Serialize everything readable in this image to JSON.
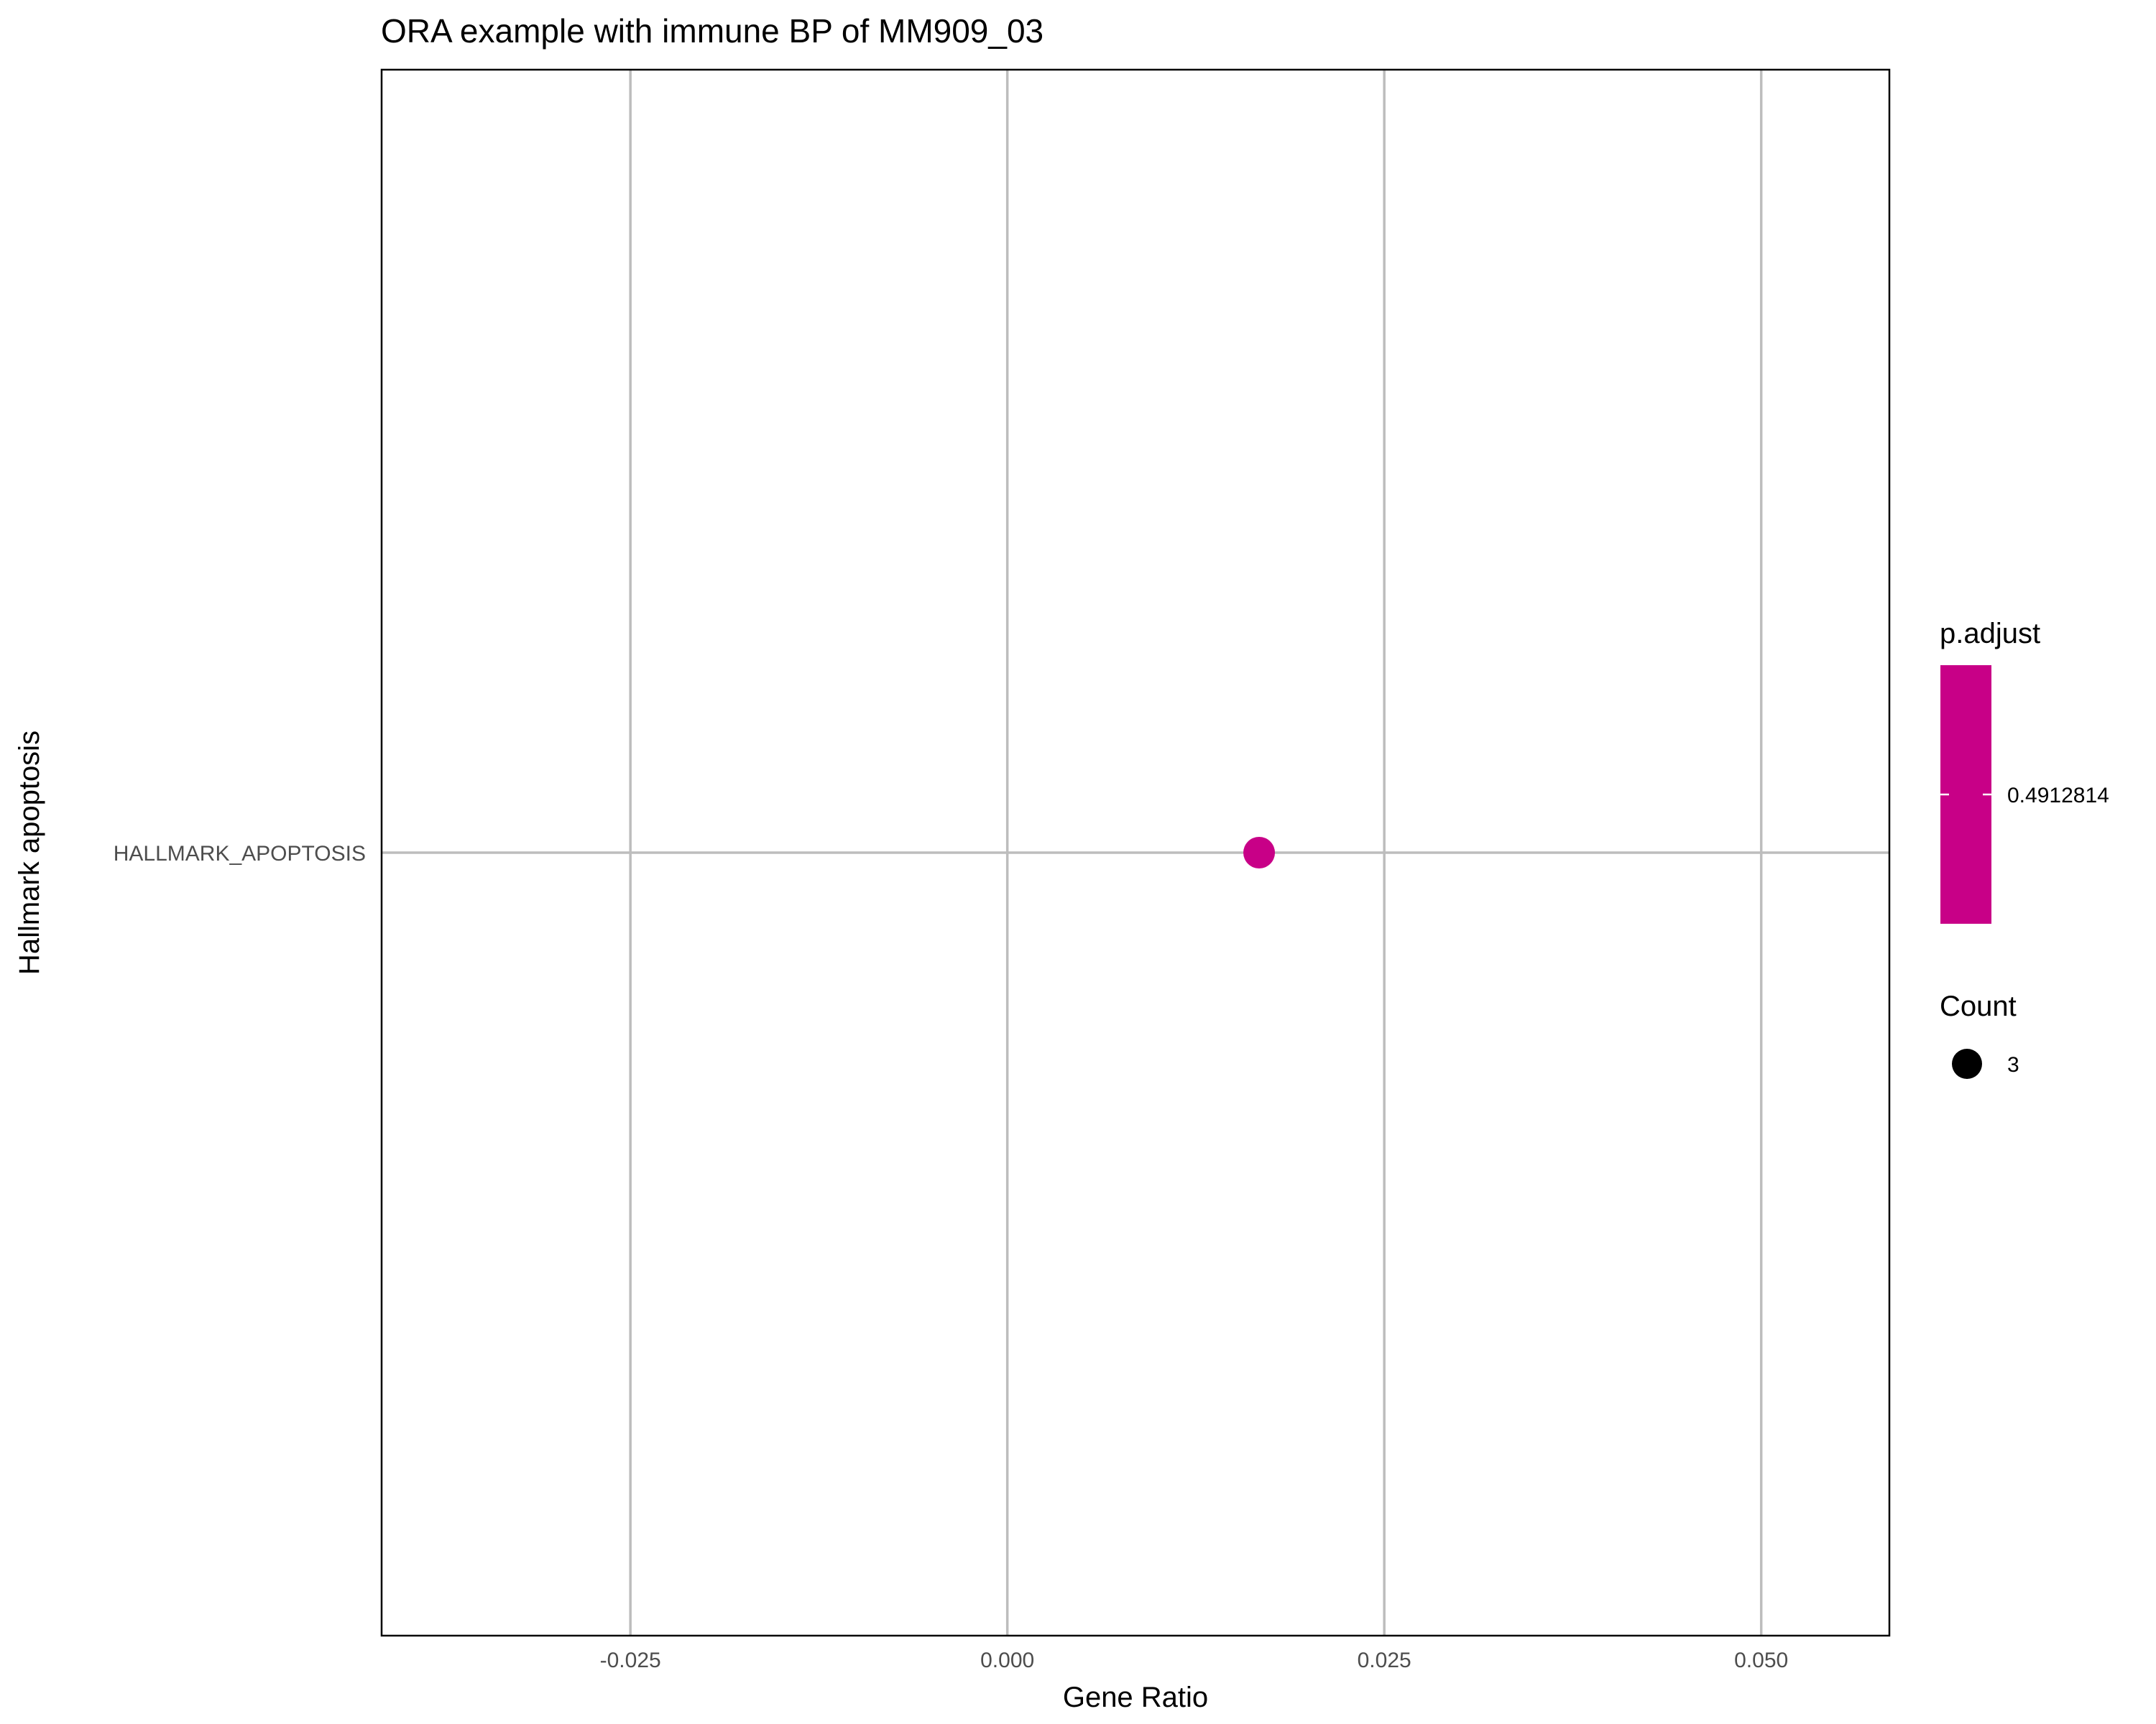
{
  "chart_data": {
    "type": "scatter",
    "title": "ORA example with immune BP of MM909_03",
    "xlabel": "Gene Ratio",
    "ylabel": "Hallmark apoptosis",
    "xlim": [
      -0.0415,
      0.0585
    ],
    "x_ticks": [
      "-0.025",
      "0.000",
      "0.025",
      "0.050"
    ],
    "x_tick_values": [
      -0.025,
      0.0,
      0.025,
      0.05
    ],
    "categories": [
      "HALLMARK_APOPTOSIS"
    ],
    "grid": true,
    "points": [
      {
        "category": "HALLMARK_APOPTOSIS",
        "x": 0.0167,
        "count": 3,
        "p_adjust": 0.4912814
      }
    ],
    "legend": {
      "placement": "right",
      "color_title": "p.adjust",
      "color_value": "0.4912814",
      "size_title": "Count",
      "size_value": "3"
    },
    "colors": {
      "point": "#c80087",
      "colorbar": "#c80087",
      "grid": "#bdbdbd",
      "size_key": "#000000"
    }
  }
}
